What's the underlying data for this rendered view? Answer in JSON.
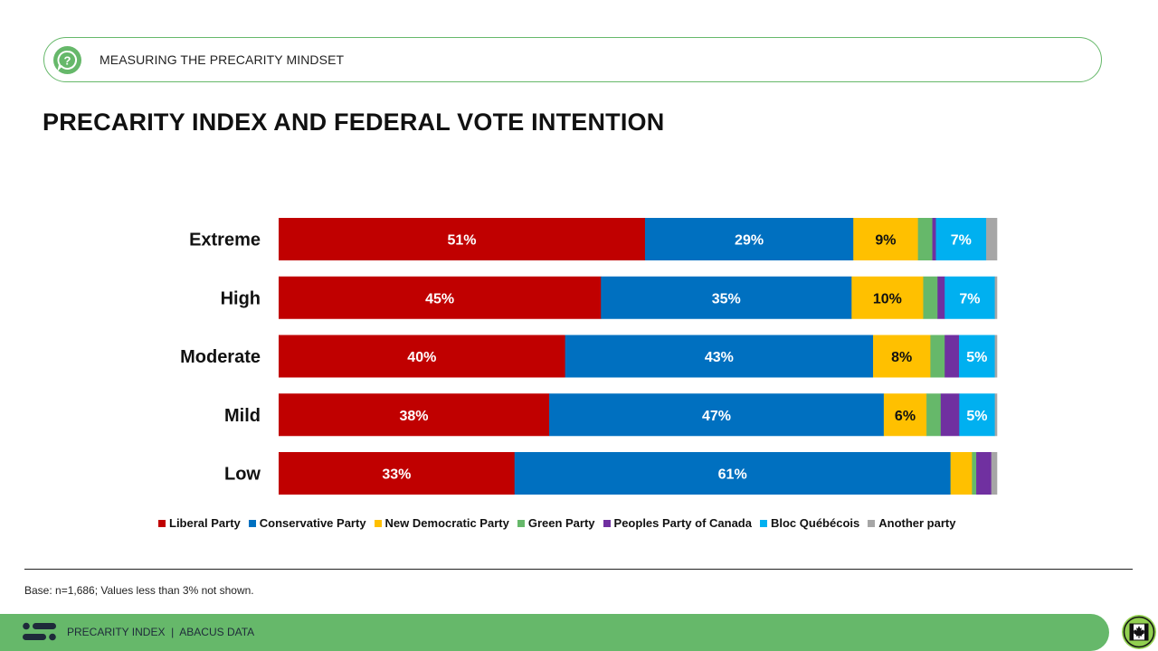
{
  "header": {
    "topic_icon": "question-bubble-icon",
    "topic_label": "MEASURING THE PRECARITY MINDSET",
    "title": "PRECARITY INDEX AND FEDERAL VOTE INTENTION"
  },
  "chart_data": {
    "type": "bar",
    "orientation": "horizontal",
    "stacked": true,
    "title": "PRECARITY INDEX AND FEDERAL VOTE INTENTION",
    "xlabel": "",
    "ylabel": "",
    "xlim": [
      0,
      100
    ],
    "grid": false,
    "legend_position": "bottom",
    "label_threshold": 3,
    "categories": [
      "Extreme",
      "High",
      "Moderate",
      "Mild",
      "Low"
    ],
    "series": [
      {
        "name": "Liberal Party",
        "color": "#c00000",
        "label_color": "#ffffff",
        "values": [
          51,
          45,
          40,
          38,
          33
        ]
      },
      {
        "name": "Conservative Party",
        "color": "#0070c0",
        "label_color": "#ffffff",
        "values": [
          29,
          35,
          43,
          47,
          61
        ]
      },
      {
        "name": "New Democratic Party",
        "color": "#ffc000",
        "label_color": "#111111",
        "values": [
          9,
          10,
          8,
          6,
          3
        ]
      },
      {
        "name": "Green Party",
        "color": "#66b86a",
        "label_color": "#ffffff",
        "values": [
          2,
          2,
          2,
          2,
          0.6
        ]
      },
      {
        "name": "Peoples Party of Canada",
        "color": "#7030a0",
        "label_color": "#ffffff",
        "values": [
          0.5,
          1,
          2,
          2.6,
          2.1
        ]
      },
      {
        "name": "Bloc Québécois",
        "color": "#00b0f0",
        "label_color": "#ffffff",
        "values": [
          7,
          7,
          5,
          5,
          0
        ]
      },
      {
        "name": "Another party",
        "color": "#a6a6a6",
        "label_color": "#ffffff",
        "values": [
          1.5,
          0.3,
          0.3,
          0.3,
          0.8
        ]
      }
    ],
    "data_labels": [
      [
        "51%",
        "29%",
        "9%",
        "",
        "",
        "7%",
        ""
      ],
      [
        "45%",
        "35%",
        "10%",
        "",
        "",
        "7%",
        ""
      ],
      [
        "40%",
        "43%",
        "8%",
        "",
        "",
        "5%",
        ""
      ],
      [
        "38%",
        "47%",
        "6%",
        "",
        "",
        "5%",
        ""
      ],
      [
        "33%",
        "61%",
        "",
        "",
        "",
        "",
        ""
      ]
    ]
  },
  "notes": {
    "base": "Base: n=1,686; Values less than 3% not shown."
  },
  "footer": {
    "logo_icon": "abacus-logo-icon",
    "text": "PRECARITY INDEX  |  ABACUS DATA",
    "badge_icon": "canada-flag-icon"
  }
}
